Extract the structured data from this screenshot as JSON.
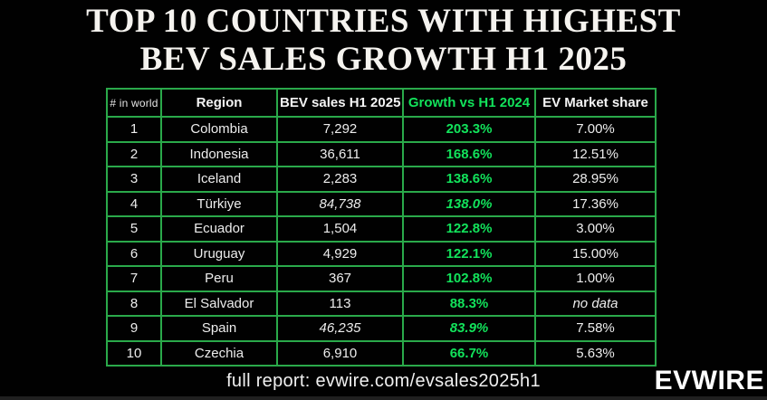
{
  "title": {
    "line1": "TOP 10 COUNTRIES WITH HIGHEST",
    "line2": "BEV SALES GROWTH H1 2025"
  },
  "table": {
    "columns": [
      "# in world",
      "Region",
      "BEV sales H1 2025",
      "Growth vs H1 2024",
      "EV Market share"
    ],
    "rows": [
      {
        "rank": "1",
        "region": "Colombia",
        "sales": "7,292",
        "growth": "203.3%",
        "share": "7.00%",
        "italic": []
      },
      {
        "rank": "2",
        "region": "Indonesia",
        "sales": "36,611",
        "growth": "168.6%",
        "share": "12.51%",
        "italic": []
      },
      {
        "rank": "3",
        "region": "Iceland",
        "sales": "2,283",
        "growth": "138.6%",
        "share": "28.95%",
        "italic": []
      },
      {
        "rank": "4",
        "region": "Türkiye",
        "sales": "84,738",
        "growth": "138.0%",
        "share": "17.36%",
        "italic": [
          "sales",
          "growth"
        ]
      },
      {
        "rank": "5",
        "region": "Ecuador",
        "sales": "1,504",
        "growth": "122.8%",
        "share": "3.00%",
        "italic": []
      },
      {
        "rank": "6",
        "region": "Uruguay",
        "sales": "4,929",
        "growth": "122.1%",
        "share": "15.00%",
        "italic": []
      },
      {
        "rank": "7",
        "region": "Peru",
        "sales": "367",
        "growth": "102.8%",
        "share": "1.00%",
        "italic": []
      },
      {
        "rank": "8",
        "region": "El Salvador",
        "sales": "113",
        "growth": "88.3%",
        "share": "no data",
        "italic": [
          "share"
        ]
      },
      {
        "rank": "9",
        "region": "Spain",
        "sales": "46,235",
        "growth": "83.9%",
        "share": "7.58%",
        "italic": [
          "sales",
          "growth"
        ]
      },
      {
        "rank": "10",
        "region": "Czechia",
        "sales": "6,910",
        "growth": "66.7%",
        "share": "5.63%",
        "italic": []
      }
    ]
  },
  "footer": {
    "report": "full report: evwire.com/evsales2025h1",
    "brand": "EVWIRE"
  },
  "colors": {
    "background": "#000000",
    "border_green": "#2aa94a",
    "text_green": "#12e35b",
    "text_white": "#f2f2f2"
  },
  "chart_data": {
    "type": "table",
    "title": "TOP 10 COUNTRIES WITH HIGHEST BEV SALES GROWTH H1 2025",
    "columns": [
      "# in world",
      "Region",
      "BEV sales H1 2025",
      "Growth vs H1 2024",
      "EV Market share"
    ],
    "rows": [
      [
        "1",
        "Colombia",
        "7,292",
        "203.3%",
        "7.00%"
      ],
      [
        "2",
        "Indonesia",
        "36,611",
        "168.6%",
        "12.51%"
      ],
      [
        "3",
        "Iceland",
        "2,283",
        "138.6%",
        "28.95%"
      ],
      [
        "4",
        "Türkiye",
        "84,738",
        "138.0%",
        "17.36%"
      ],
      [
        "5",
        "Ecuador",
        "1,504",
        "122.8%",
        "3.00%"
      ],
      [
        "6",
        "Uruguay",
        "4,929",
        "122.1%",
        "15.00%"
      ],
      [
        "7",
        "Peru",
        "367",
        "102.8%",
        "1.00%"
      ],
      [
        "8",
        "El Salvador",
        "113",
        "88.3%",
        "no data"
      ],
      [
        "9",
        "Spain",
        "46,235",
        "83.9%",
        "7.58%"
      ],
      [
        "10",
        "Czechia",
        "6,910",
        "66.7%",
        "5.63%"
      ]
    ],
    "notes": "Growth column rendered in bright green bold; italic values (Türkiye, Spain sales/growth; El Salvador share) indicate estimates/no data"
  }
}
